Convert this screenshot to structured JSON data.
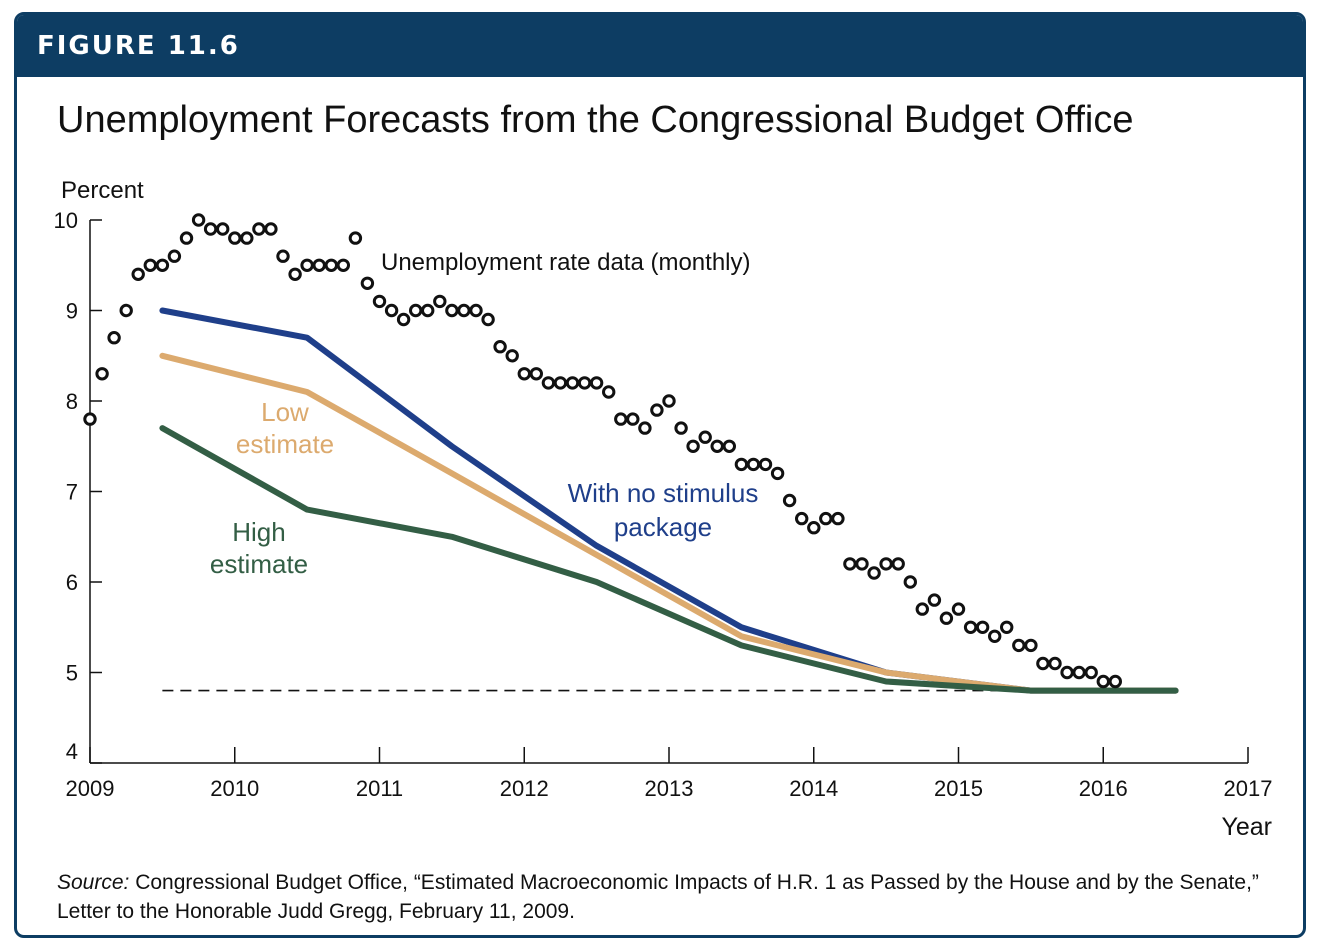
{
  "figure": {
    "label": "FIGURE 11.6",
    "title": "Unemployment Forecasts from the Congressional Budget Office",
    "source_prefix": "Source:",
    "source_text": " Congressional Budget Office, “Estimated Macroeconomic Impacts of H.R. 1 as Passed by the House and by the Senate,” Letter to the Honorable Judd Gregg, February 11, 2009."
  },
  "colors": {
    "banner": "#0d3d63",
    "no_stimulus": "#1f3f8a",
    "low_estimate": "#dcaa6e",
    "high_estimate": "#335e45",
    "data_points": "#111111"
  },
  "chart_data": {
    "type": "line",
    "title": "Unemployment Forecasts from the Congressional Budget Office",
    "xlabel": "Year",
    "ylabel": "Percent",
    "xlim": [
      2009,
      2017
    ],
    "ylim": [
      4,
      10
    ],
    "x_ticks": [
      "2009",
      "2010",
      "2011",
      "2012",
      "2013",
      "2014",
      "2015",
      "2016",
      "2017"
    ],
    "y_ticks": [
      "4",
      "5",
      "6",
      "7",
      "8",
      "9",
      "10"
    ],
    "grid": false,
    "series": [
      {
        "name": "With no stimulus package",
        "label_lines": [
          "With no stimulus",
          "package"
        ],
        "color_key": "no_stimulus",
        "x": [
          2009.5,
          2010.5,
          2011.5,
          2012.5,
          2013.5,
          2014.5,
          2015.5,
          2016.5
        ],
        "values": [
          9.0,
          8.7,
          7.5,
          6.4,
          5.5,
          5.0,
          4.8,
          4.8
        ]
      },
      {
        "name": "Low estimate",
        "label_lines": [
          "Low",
          "estimate"
        ],
        "color_key": "low_estimate",
        "x": [
          2009.5,
          2010.5,
          2011.5,
          2012.5,
          2013.5,
          2014.5,
          2015.5,
          2016.5
        ],
        "values": [
          8.5,
          8.1,
          7.2,
          6.3,
          5.4,
          5.0,
          4.8,
          4.8
        ]
      },
      {
        "name": "High estimate",
        "label_lines": [
          "High",
          "estimate"
        ],
        "color_key": "high_estimate",
        "x": [
          2009.5,
          2010.5,
          2011.5,
          2012.5,
          2013.5,
          2014.5,
          2015.5,
          2016.5
        ],
        "values": [
          7.7,
          6.8,
          6.5,
          6.0,
          5.3,
          4.9,
          4.8,
          4.8
        ]
      }
    ],
    "reference_line": {
      "style": "dashed",
      "value": 4.8,
      "x_start": 2009.5,
      "x_end": 2016.5
    },
    "monthly_data": {
      "name": "Unemployment rate data (monthly)",
      "start_year": 2009,
      "start_month": 1,
      "values": [
        7.8,
        8.3,
        8.7,
        9.0,
        9.4,
        9.5,
        9.5,
        9.6,
        9.8,
        10.0,
        9.9,
        9.9,
        9.8,
        9.8,
        9.9,
        9.9,
        9.6,
        9.4,
        9.5,
        9.5,
        9.5,
        9.5,
        9.8,
        9.3,
        9.1,
        9.0,
        8.9,
        9.0,
        9.0,
        9.1,
        9.0,
        9.0,
        9.0,
        8.9,
        8.6,
        8.5,
        8.3,
        8.3,
        8.2,
        8.2,
        8.2,
        8.2,
        8.2,
        8.1,
        7.8,
        7.8,
        7.7,
        7.9,
        8.0,
        7.7,
        7.5,
        7.6,
        7.5,
        7.5,
        7.3,
        7.3,
        7.3,
        7.2,
        6.9,
        6.7,
        6.6,
        6.7,
        6.7,
        6.2,
        6.2,
        6.1,
        6.2,
        6.2,
        6.0,
        5.7,
        5.8,
        5.6,
        5.7,
        5.5,
        5.5,
        5.4,
        5.5,
        5.3,
        5.3,
        5.1,
        5.1,
        5.0,
        5.0,
        5.0,
        4.9,
        4.9
      ]
    }
  }
}
